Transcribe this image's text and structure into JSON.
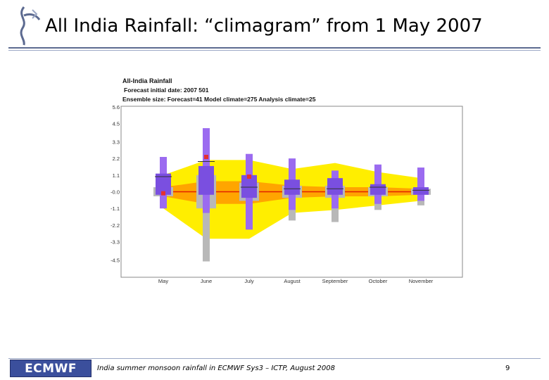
{
  "slide": {
    "title": "All India Rainfall: “climagram” from 1 May 2007",
    "footer_text": "India summer monsoon rainfall in ECMWF Sys3 – ICTP, August 2008",
    "page_number": "9",
    "logo_text": "ECMWF",
    "accent_color": "#5c6a90",
    "logo_color": "#3b4f9c"
  },
  "chart_data": {
    "type": "climagram",
    "title": "All-India Rainfall",
    "subtitle_1": "Forecast initial date: 2007 501",
    "subtitle_2": "Ensemble size: Forecast=41 Model climate=275 Analysis climate=25",
    "categories": [
      "May",
      "June",
      "July",
      "August",
      "September",
      "October",
      "November"
    ],
    "y_ticks": [
      "5.6",
      "4.5",
      "3.3",
      "2.2",
      "1.1",
      "-0.0",
      "-1.1",
      "-2.2",
      "-3.3",
      "-4.5"
    ],
    "ylim": [
      -5.6,
      5.6
    ],
    "grid": false,
    "colors": {
      "climate_outer": "#ffee00",
      "climate_inner": "#ffa500",
      "climate_median": "#e02000",
      "forecast_outer": "#9b6bf0",
      "forecast_inner": "#7a4fe0",
      "analysis": "#b8b8b8",
      "observed": "#e53030"
    },
    "model_climate": {
      "p5": [
        -1.1,
        -3.1,
        -3.1,
        -1.4,
        -1.2,
        -0.9,
        -0.6
      ],
      "p25": [
        -0.3,
        -0.8,
        -0.8,
        -0.4,
        -0.3,
        -0.3,
        -0.2
      ],
      "p50": [
        0.0,
        0.0,
        0.0,
        0.0,
        0.0,
        0.0,
        0.0
      ],
      "p75": [
        0.3,
        0.7,
        0.7,
        0.4,
        0.3,
        0.3,
        0.2
      ],
      "p95": [
        1.1,
        2.1,
        2.1,
        1.5,
        1.9,
        1.3,
        0.9
      ]
    },
    "forecast": {
      "min": [
        -1.1,
        -1.4,
        -2.5,
        -1.2,
        -1.1,
        -0.8,
        -0.6
      ],
      "p25": [
        -0.2,
        -0.2,
        -0.4,
        -0.2,
        -0.2,
        -0.2,
        -0.2
      ],
      "median": [
        1.0,
        2.0,
        0.3,
        0.2,
        0.2,
        0.3,
        0.1
      ],
      "p75": [
        1.2,
        1.7,
        1.1,
        0.8,
        0.9,
        0.5,
        0.3
      ],
      "max": [
        2.3,
        4.2,
        2.5,
        2.2,
        1.4,
        1.8,
        1.6
      ]
    },
    "analysis_climate": {
      "p5": [
        -1.1,
        -4.6,
        -2.1,
        -1.9,
        -2.0,
        -1.2,
        -0.9
      ],
      "p25": [
        -0.3,
        -1.1,
        -0.6,
        -0.4,
        -0.4,
        -0.3,
        -0.2
      ],
      "p75": [
        0.3,
        1.1,
        0.6,
        0.4,
        0.4,
        0.3,
        0.2
      ],
      "p95": [
        1.1,
        2.0,
        1.5,
        1.1,
        1.0,
        0.9,
        0.7
      ]
    },
    "observed": [
      -0.1,
      2.3,
      1.0,
      null,
      null,
      null,
      null
    ]
  }
}
